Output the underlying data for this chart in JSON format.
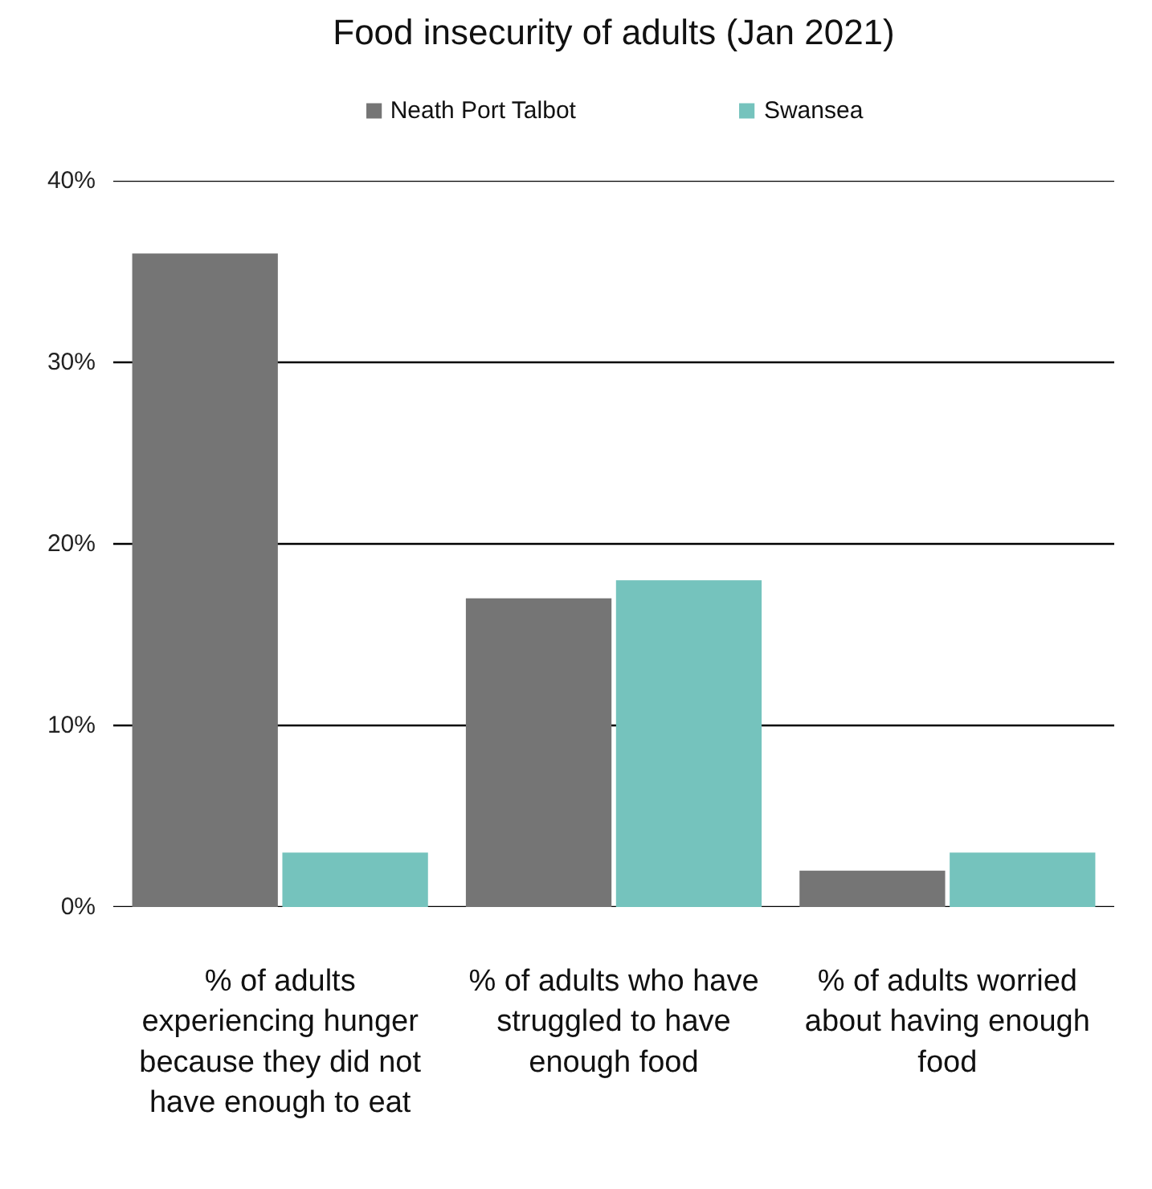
{
  "chart_data": {
    "type": "bar",
    "title": "Food insecurity of adults (Jan 2021)",
    "categories": [
      "% of adults experiencing hunger because they did not have enough to eat",
      "% of adults who have struggled to have enough food",
      "% of adults worried about having enough food"
    ],
    "series": [
      {
        "name": "Neath Port Talbot",
        "color": "#757575",
        "values": [
          36,
          17,
          2
        ]
      },
      {
        "name": "Swansea",
        "color": "#75c3bd",
        "values": [
          3,
          18,
          3
        ]
      }
    ],
    "ylim": [
      0,
      40
    ],
    "yticks": [
      {
        "value": 0,
        "label": "0%"
      },
      {
        "value": 10,
        "label": "10%"
      },
      {
        "value": 20,
        "label": "20%"
      },
      {
        "value": 30,
        "label": "30%"
      },
      {
        "value": 40,
        "label": "40%"
      }
    ],
    "grid": "y",
    "legend": "top"
  }
}
